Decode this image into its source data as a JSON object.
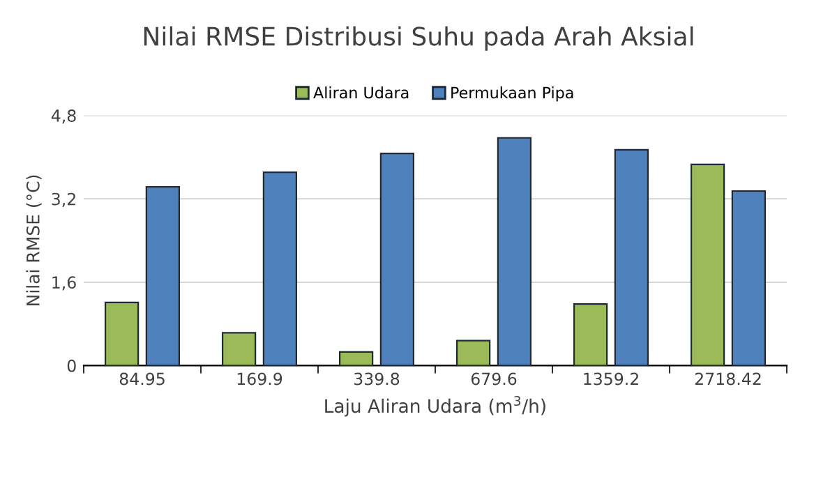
{
  "chart_data": {
    "type": "bar",
    "title": "Nilai RMSE Distribusi Suhu pada Arah Aksial",
    "xlabel": "Laju Aliran Udara (m$^{3}$/h)",
    "ylabel": "Nilai RMSE (°C)",
    "categories": [
      "84.95",
      "169.9",
      "339.8",
      "679.6",
      "1359.2",
      "2718.42"
    ],
    "series": [
      {
        "name": "Aliran Udara",
        "color": "#9bbb59",
        "values": [
          1.21,
          0.63,
          0.26,
          0.48,
          1.18,
          3.86
        ]
      },
      {
        "name": "Permukaan Pipa",
        "color": "#4f81bd",
        "values": [
          3.43,
          3.71,
          4.07,
          4.37,
          4.14,
          3.35
        ]
      }
    ],
    "ylim": [
      0,
      4.8
    ],
    "yticks": [
      0,
      {
        "value": 1.6,
        "label": "1,6"
      },
      {
        "value": 3.2,
        "label": "3,2"
      },
      {
        "value": 4.8,
        "label": "4,8"
      }
    ],
    "grid": "y",
    "legend": "top"
  }
}
